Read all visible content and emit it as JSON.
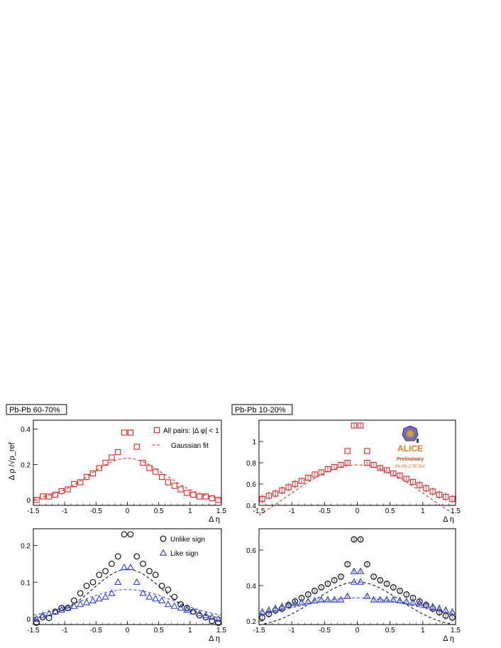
{
  "colors": {
    "red": "#e8201e",
    "blue": "#2b3fe0",
    "black": "#000000",
    "logo_orange": "#f07a1a",
    "logo_text": "#e86a10"
  },
  "logo": {
    "name": "ALICE",
    "line2": "Preliminary",
    "line3": "Pb-Pb 2.76 TeV"
  },
  "chart_data": [
    {
      "type": "scatter",
      "id": "top-left",
      "title": "Pb-Pb 60-70%",
      "xlabel": "Δ η",
      "ylabel": "Δ ρ /√ρ_ref",
      "xlim": [
        -1.5,
        1.5
      ],
      "ylim": [
        -0.03,
        0.45
      ],
      "xticks": [
        "-1.5",
        "-1",
        "-0.5",
        "0",
        "0.5",
        "1",
        "1.5"
      ],
      "yticks": [
        "0",
        "0.2",
        "0.4"
      ],
      "legend": [
        "All pairs: |Δ φ| < 1",
        "Gaussian fit"
      ],
      "series": [
        {
          "name": "All pairs: |Δ φ| < 1",
          "marker": "square",
          "color": "red",
          "x": [
            -1.45,
            -1.35,
            -1.25,
            -1.15,
            -1.05,
            -0.95,
            -0.85,
            -0.75,
            -0.65,
            -0.55,
            -0.45,
            -0.35,
            -0.25,
            -0.15,
            -0.05,
            0.05,
            0.15,
            0.25,
            0.35,
            0.45,
            0.55,
            0.65,
            0.75,
            0.85,
            0.95,
            1.05,
            1.15,
            1.25,
            1.35,
            1.45
          ],
          "y": [
            0.0,
            0.02,
            0.02,
            0.03,
            0.05,
            0.06,
            0.09,
            0.1,
            0.13,
            0.15,
            0.18,
            0.21,
            0.24,
            0.27,
            0.38,
            0.38,
            0.3,
            0.21,
            0.18,
            0.16,
            0.13,
            0.1,
            0.08,
            0.06,
            0.04,
            0.03,
            0.02,
            0.02,
            0.01,
            0.0
          ]
        }
      ],
      "fit": {
        "name": "Gaussian fit",
        "amplitude": 0.235,
        "sigma": 0.6
      }
    },
    {
      "type": "scatter",
      "id": "top-right",
      "title": "Pb-Pb 10-20%",
      "xlabel": "Δ η",
      "xlim": [
        -1.5,
        1.5
      ],
      "ylim": [
        0.4,
        1.2
      ],
      "xticks": [
        "-1.5",
        "-1",
        "-0.5",
        "0",
        "0.5",
        "1",
        "1.5"
      ],
      "yticks": [
        "0.4",
        "0.6",
        "0.8",
        "1"
      ],
      "series": [
        {
          "name": "",
          "marker": "square",
          "color": "red",
          "x": [
            -1.45,
            -1.35,
            -1.25,
            -1.15,
            -1.05,
            -0.95,
            -0.85,
            -0.75,
            -0.65,
            -0.55,
            -0.45,
            -0.35,
            -0.25,
            -0.15,
            -0.05,
            0.05,
            0.15,
            0.25,
            0.35,
            0.45,
            0.55,
            0.65,
            0.75,
            0.85,
            0.95,
            1.05,
            1.15,
            1.25,
            1.35,
            1.45
          ],
          "y": [
            0.46,
            0.49,
            0.51,
            0.54,
            0.57,
            0.6,
            0.63,
            0.66,
            0.69,
            0.71,
            0.74,
            0.76,
            0.78,
            0.8,
            1.15,
            1.15,
            0.8,
            0.78,
            0.75,
            0.73,
            0.7,
            0.68,
            0.65,
            0.62,
            0.59,
            0.56,
            0.53,
            0.5,
            0.48,
            0.46
          ]
        }
      ],
      "extra_points": [
        {
          "x": -0.15,
          "y": 0.91
        },
        {
          "x": 0.15,
          "y": 0.91
        }
      ],
      "fit": {
        "amplitude": 0.78,
        "sigma": 1.1,
        "offset": 0.0
      }
    },
    {
      "type": "scatter",
      "id": "bottom-left",
      "xlabel": "Δ η",
      "xlim": [
        -1.5,
        1.5
      ],
      "ylim": [
        -0.015,
        0.245
      ],
      "xticks": [
        "-1.5",
        "-1",
        "-0.5",
        "0",
        "0.5",
        "1",
        "1.5"
      ],
      "yticks": [
        "0",
        "0.1",
        "0.2"
      ],
      "legend": [
        "Unlike sign",
        "Like sign"
      ],
      "series": [
        {
          "name": "Unlike sign",
          "marker": "circle",
          "color": "black",
          "x": [
            -1.45,
            -1.35,
            -1.25,
            -1.15,
            -1.05,
            -0.95,
            -0.85,
            -0.75,
            -0.65,
            -0.55,
            -0.45,
            -0.35,
            -0.25,
            -0.15,
            -0.05,
            0.05,
            0.15,
            0.25,
            0.35,
            0.45,
            0.55,
            0.65,
            0.75,
            0.85,
            0.95,
            1.05,
            1.15,
            1.25,
            1.35,
            1.45
          ],
          "y": [
            -0.01,
            0.005,
            0.003,
            0.02,
            0.03,
            0.03,
            0.05,
            0.07,
            0.09,
            0.1,
            0.12,
            0.13,
            0.15,
            0.17,
            0.23,
            0.23,
            0.17,
            0.15,
            0.13,
            0.12,
            0.09,
            0.08,
            0.06,
            0.04,
            0.03,
            0.02,
            0.01,
            0.005,
            -0.005,
            -0.01
          ]
        },
        {
          "name": "Like sign",
          "marker": "triangle",
          "color": "blue",
          "x": [
            -1.45,
            -1.35,
            -1.25,
            -1.15,
            -1.05,
            -0.95,
            -0.85,
            -0.75,
            -0.65,
            -0.55,
            -0.45,
            -0.35,
            -0.25,
            -0.15,
            -0.05,
            0.05,
            0.15,
            0.25,
            0.35,
            0.45,
            0.55,
            0.65,
            0.75,
            0.85,
            0.95,
            1.05,
            1.15,
            1.25,
            1.35,
            1.45
          ],
          "y": [
            0.0,
            0.01,
            0.015,
            0.02,
            0.025,
            0.03,
            0.035,
            0.04,
            0.045,
            0.05,
            0.055,
            0.06,
            0.07,
            0.1,
            0.14,
            0.14,
            0.1,
            0.07,
            0.06,
            0.055,
            0.05,
            0.04,
            0.035,
            0.03,
            0.025,
            0.02,
            0.015,
            0.01,
            0.005,
            0.0
          ]
        }
      ],
      "fits": [
        {
          "amplitude": 0.135,
          "sigma": 0.55
        },
        {
          "amplitude": 0.08,
          "sigma": 0.75
        }
      ]
    },
    {
      "type": "scatter",
      "id": "bottom-right",
      "xlabel": "Δ η",
      "xlim": [
        -1.5,
        1.5
      ],
      "ylim": [
        0.18,
        0.72
      ],
      "xticks": [
        "-1.5",
        "-1",
        "-0.5",
        "0",
        "0.5",
        "1",
        "1.5"
      ],
      "yticks": [
        "0.2",
        "0.4",
        "0.6"
      ],
      "series": [
        {
          "name": "Unlike sign",
          "marker": "circle",
          "color": "black",
          "x": [
            -1.45,
            -1.35,
            -1.25,
            -1.15,
            -1.05,
            -0.95,
            -0.85,
            -0.75,
            -0.65,
            -0.55,
            -0.45,
            -0.35,
            -0.25,
            -0.15,
            -0.05,
            0.05,
            0.15,
            0.25,
            0.35,
            0.45,
            0.55,
            0.65,
            0.75,
            0.85,
            0.95,
            1.05,
            1.15,
            1.25,
            1.35,
            1.45
          ],
          "y": [
            0.22,
            0.24,
            0.26,
            0.27,
            0.29,
            0.31,
            0.33,
            0.35,
            0.37,
            0.39,
            0.41,
            0.43,
            0.45,
            0.52,
            0.66,
            0.66,
            0.52,
            0.45,
            0.43,
            0.41,
            0.39,
            0.37,
            0.35,
            0.33,
            0.31,
            0.29,
            0.27,
            0.25,
            0.23,
            0.22
          ]
        },
        {
          "name": "Like sign",
          "marker": "triangle",
          "color": "blue",
          "x": [
            -1.45,
            -1.35,
            -1.25,
            -1.15,
            -1.05,
            -0.95,
            -0.85,
            -0.75,
            -0.65,
            -0.55,
            -0.45,
            -0.35,
            -0.25,
            -0.15,
            -0.05,
            0.05,
            0.15,
            0.25,
            0.35,
            0.45,
            0.55,
            0.65,
            0.75,
            0.85,
            0.95,
            1.05,
            1.15,
            1.25,
            1.35,
            1.45
          ],
          "y": [
            0.25,
            0.26,
            0.27,
            0.28,
            0.29,
            0.3,
            0.305,
            0.31,
            0.315,
            0.32,
            0.32,
            0.32,
            0.32,
            0.34,
            0.48,
            0.48,
            0.34,
            0.32,
            0.32,
            0.32,
            0.32,
            0.315,
            0.31,
            0.305,
            0.3,
            0.29,
            0.28,
            0.27,
            0.26,
            0.25
          ]
        }
      ],
      "extra_points": [
        {
          "x": -0.05,
          "y": 0.42
        },
        {
          "x": 0.05,
          "y": 0.42
        }
      ],
      "fits": [
        {
          "amplitude": 0.26,
          "sigma": 0.65,
          "offset": 0.16
        },
        {
          "amplitude": 0.12,
          "sigma": 0.9,
          "offset": 0.21
        }
      ]
    }
  ]
}
